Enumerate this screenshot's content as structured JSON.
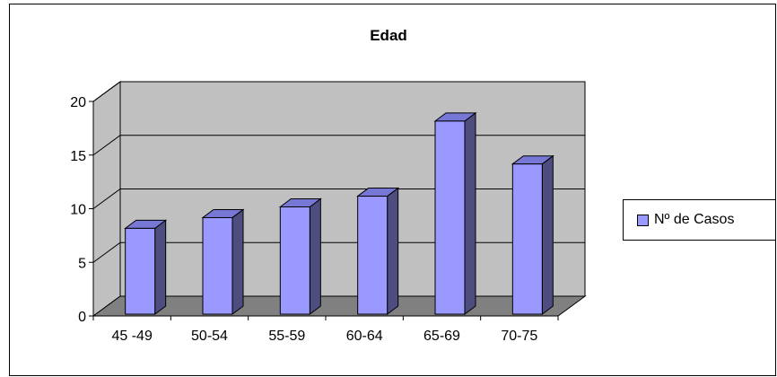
{
  "chart_data": {
    "type": "bar",
    "title": "Edad",
    "categories": [
      "45 -49",
      "50-54",
      "55-59",
      "60-64",
      "65-69",
      "70-75"
    ],
    "series": [
      {
        "name": "Nº de Casos",
        "values": [
          8,
          9,
          10,
          11,
          18,
          14
        ]
      }
    ],
    "ylim": [
      0,
      20
    ],
    "yticks": [
      0,
      5,
      10,
      15,
      20
    ],
    "grid": true,
    "legend_position": "right",
    "colors": {
      "bar_front": "#9999ff",
      "bar_side": "#4d4d80",
      "bar_top": "#7777d6",
      "wall": "#c0c0c0",
      "floor": "#808080"
    }
  }
}
